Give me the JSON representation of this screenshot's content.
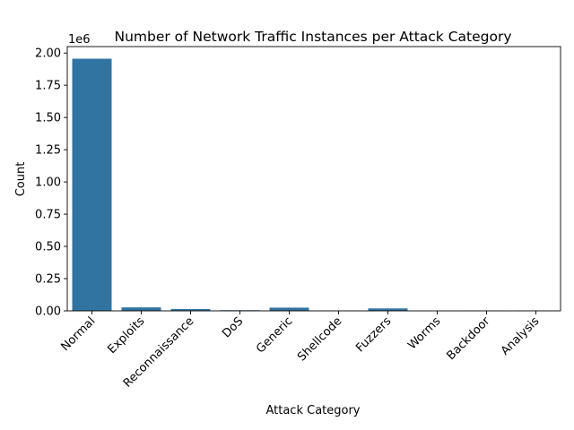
{
  "chart_data": {
    "type": "bar",
    "title": "Number of Network Traffic Instances per Attack Category",
    "xlabel": "Attack Category",
    "ylabel": "Count",
    "y_offset_label": "1e6",
    "categories": [
      "Normal",
      "Exploits",
      "Reconnaissance",
      "DoS",
      "Generic",
      "Shellcode",
      "Fuzzers",
      "Worms",
      "Backdoor",
      "Analysis"
    ],
    "values": [
      1956000,
      27000,
      14000,
      5000,
      25000,
      1500,
      19000,
      200,
      2300,
      2700
    ],
    "ylim": [
      0,
      2050000
    ],
    "yticks": [
      0,
      250000,
      500000,
      750000,
      1000000,
      1250000,
      1500000,
      1750000,
      2000000
    ],
    "ytick_labels": [
      "0.00",
      "0.25",
      "0.50",
      "0.75",
      "1.00",
      "1.25",
      "1.50",
      "1.75",
      "2.00"
    ],
    "bar_color": "#3274a1",
    "grid": false,
    "legend": "none"
  }
}
